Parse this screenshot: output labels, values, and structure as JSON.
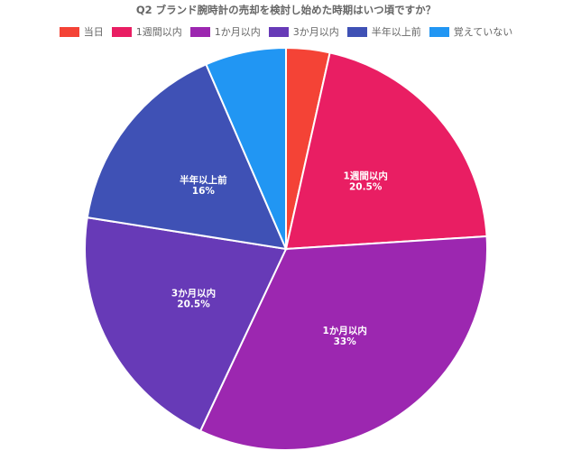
{
  "chart_data": {
    "type": "pie",
    "title": "Q2 ブランド腕時計の売却を検討し始めた時期はいつ頃ですか？",
    "legend_position": "top",
    "categories": [
      "当日",
      "1週間以内",
      "1か月以内",
      "3か月以内",
      "半年以上前",
      "覚えていない"
    ],
    "values": [
      3.5,
      20.5,
      33,
      20.5,
      16,
      6.5
    ],
    "data_labels": [
      "",
      "20.5%",
      "33%",
      "20.5%",
      "16%",
      ""
    ],
    "colors": [
      "#f44336",
      "#e91e63",
      "#9c27b0",
      "#673ab7",
      "#3f51b5",
      "#2196f3"
    ]
  }
}
